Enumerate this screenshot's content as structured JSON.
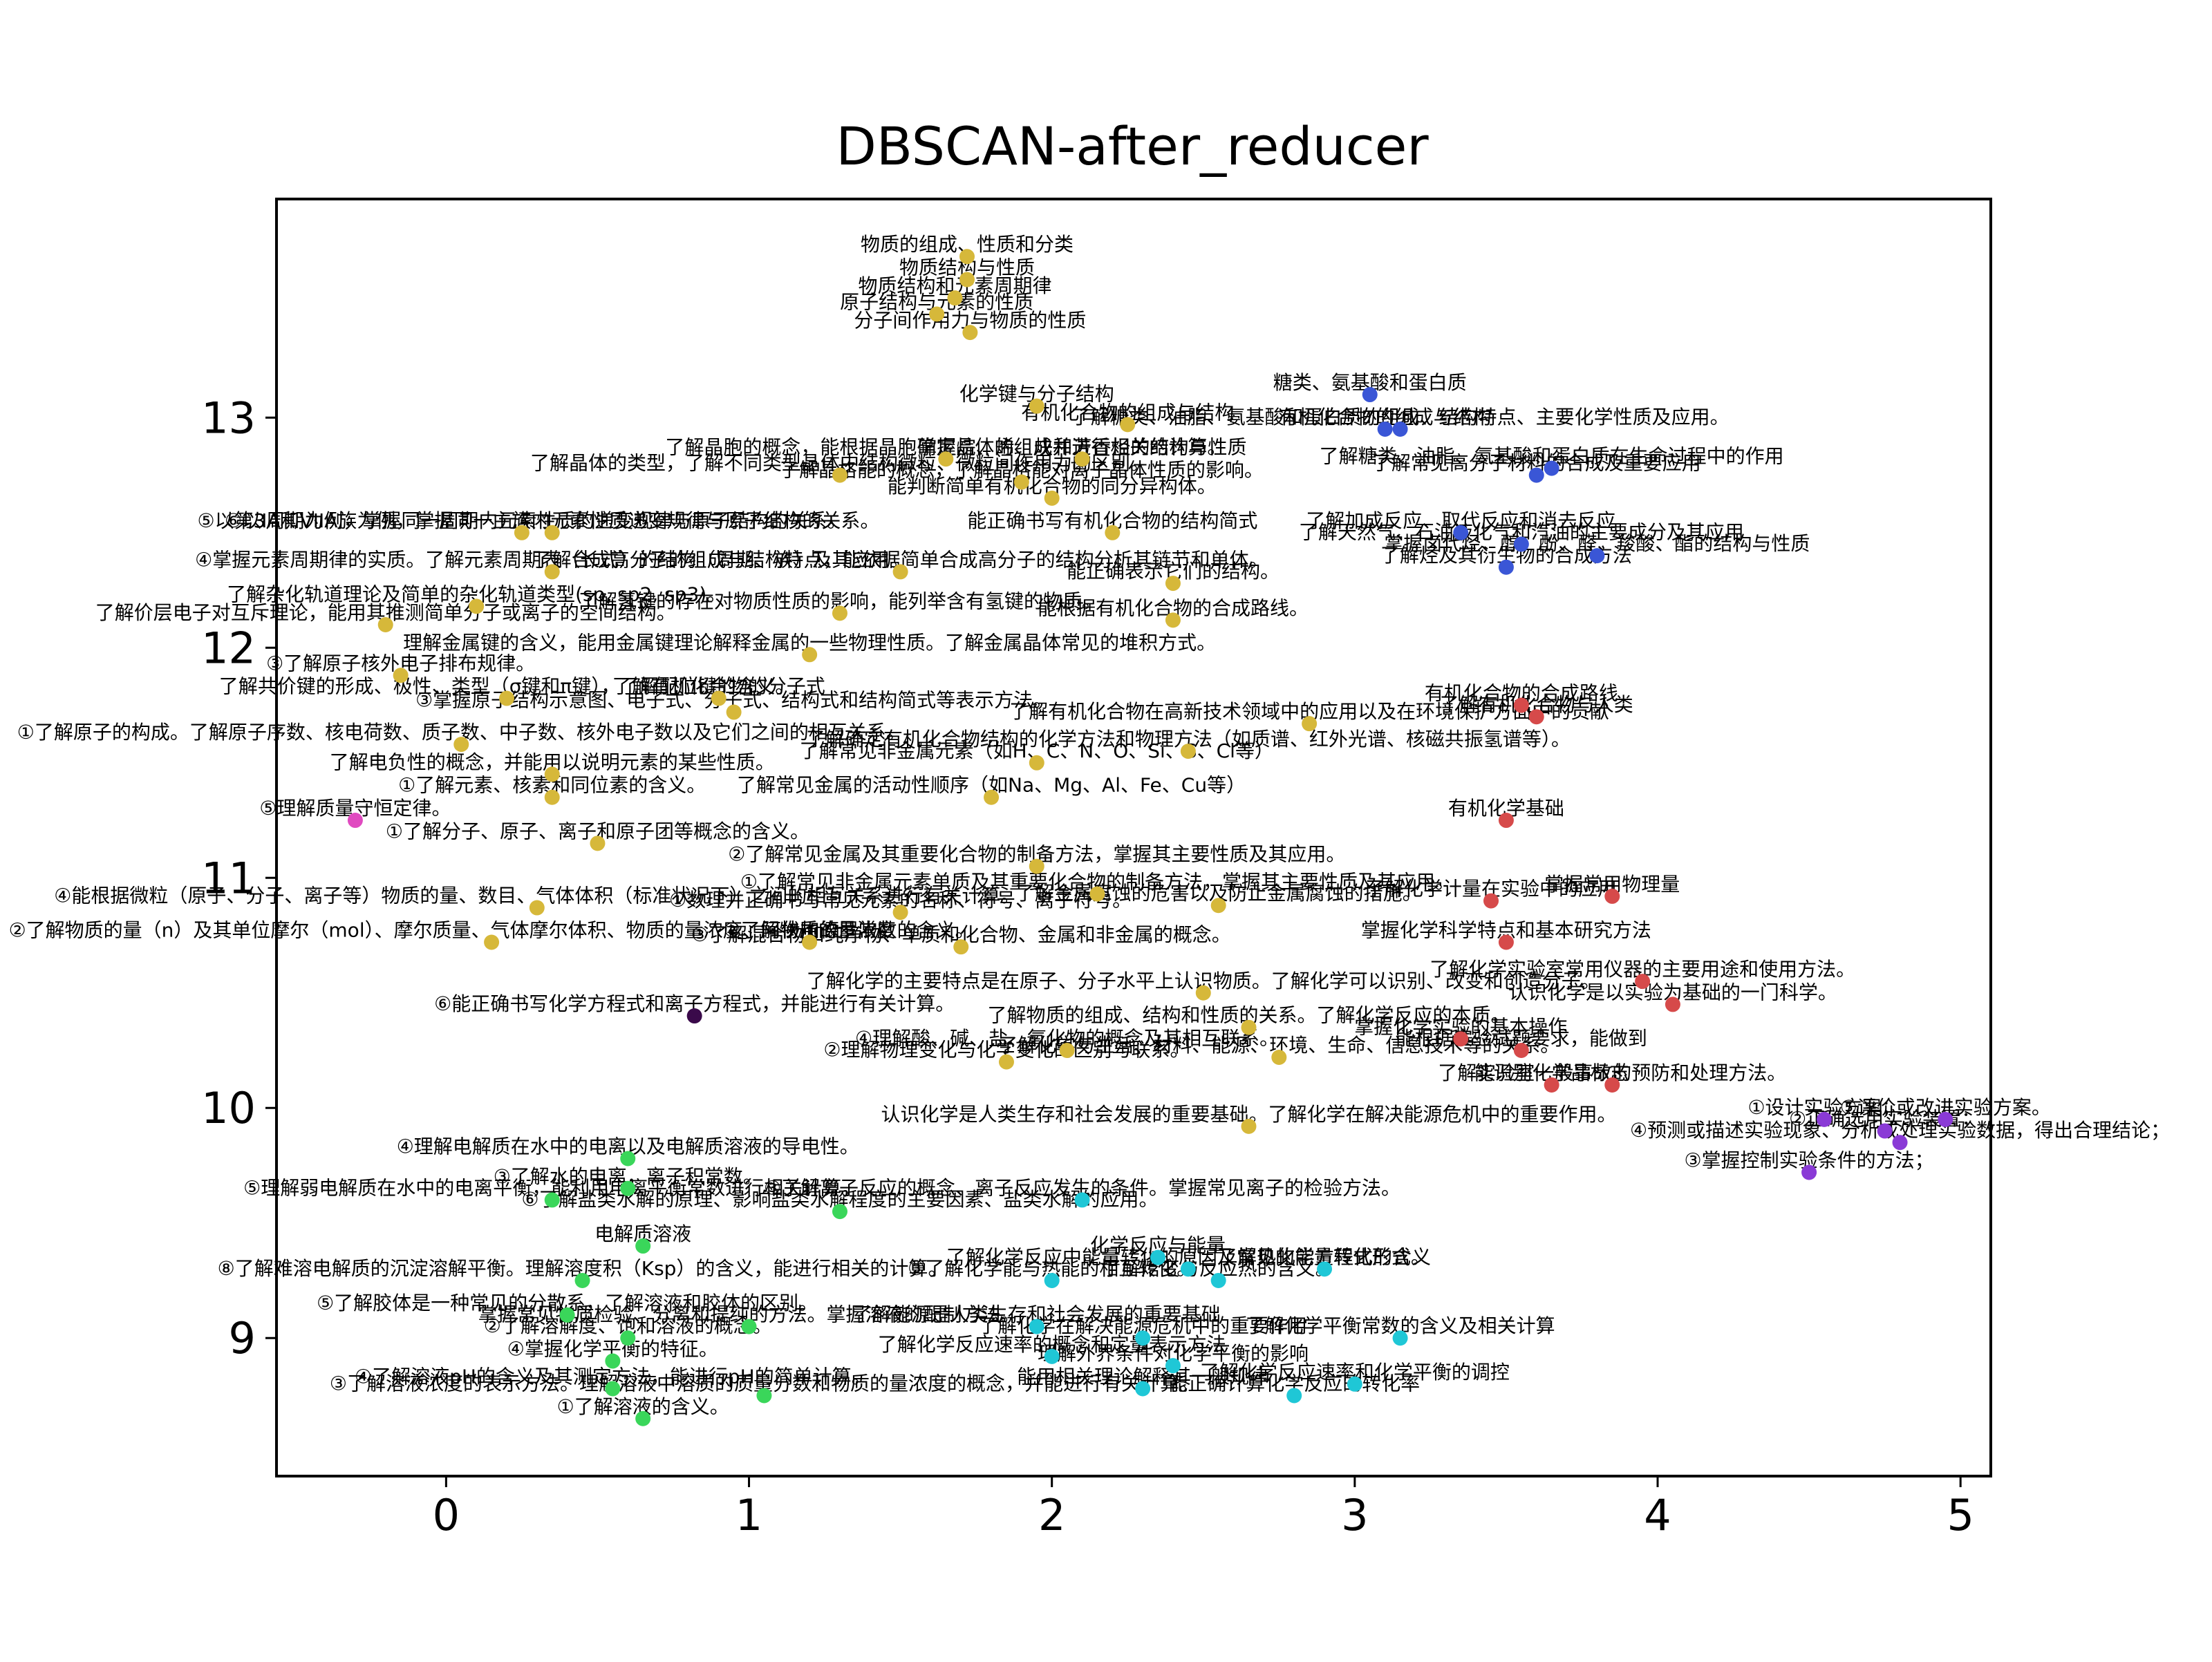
{
  "chart_data": {
    "type": "scatter",
    "title": "DBSCAN-after_reducer",
    "xlabel": "",
    "ylabel": "",
    "xlim": [
      -0.56,
      5.1
    ],
    "ylim": [
      8.4,
      13.95
    ],
    "x_ticks": [
      0,
      1,
      2,
      3,
      4,
      5
    ],
    "y_ticks": [
      9,
      10,
      11,
      12,
      13
    ],
    "grid": false,
    "legend": "none",
    "cluster_colors": {
      "c0": "#d6b83a",
      "c1": "#3a56d6",
      "c2": "#d64a4a",
      "c3": "#1fc7d6",
      "c4": "#3ad65a",
      "c5": "#8a3ad6",
      "c6": "#e04ac0",
      "c7": "#3a0a4a"
    },
    "series": [
      {
        "cluster": "c0",
        "points": [
          {
            "x": 1.72,
            "y": 13.7,
            "label": "物质的组成、性质和分类"
          },
          {
            "x": 1.72,
            "y": 13.6,
            "label": "物质结构与性质"
          },
          {
            "x": 1.68,
            "y": 13.52,
            "label": "物质结构和元素周期律"
          },
          {
            "x": 1.62,
            "y": 13.45,
            "label": "原子结构与元素的性质"
          },
          {
            "x": 1.73,
            "y": 13.37,
            "label": "分子间作用力与物质的性质"
          },
          {
            "x": 1.95,
            "y": 13.05,
            "label": "化学键与分子结构"
          },
          {
            "x": 2.25,
            "y": 12.97,
            "label": "有机化合物的组成与结构"
          },
          {
            "x": 1.65,
            "y": 12.82,
            "label": "了解晶胞的概念，能根据晶胞确定晶体的组成并进行相关的计算。"
          },
          {
            "x": 2.1,
            "y": 12.82,
            "label": "掌握烷、烯、炔和芳香烃的结构与性质"
          },
          {
            "x": 1.3,
            "y": 12.75,
            "label": "了解晶体的类型，了解不同类型晶体中结构微粒、微粒间作用力的区别。"
          },
          {
            "x": 1.9,
            "y": 12.72,
            "label": "了解晶格能的概念，了解晶格能对离子晶体性质的影响。"
          },
          {
            "x": 2.0,
            "y": 12.65,
            "label": "能判断简单有机化合物的同分异构体。"
          },
          {
            "x": 0.25,
            "y": 12.5,
            "label": "⑤以第3周期为例，掌握同一周期内元素性质的递变规律与原子结构的关系。"
          },
          {
            "x": 0.35,
            "y": 12.5,
            "label": "⑥以IA和VIIA族为例，掌握同一主族内元素性质递变规律与原子结构的关系。"
          },
          {
            "x": 2.2,
            "y": 12.5,
            "label": "能正确书写有机化合物的结构简式"
          },
          {
            "x": 0.35,
            "y": 12.33,
            "label": "④掌握元素周期律的实质。了解元素周期表（长式）的结构（周期、族）及其应用。"
          },
          {
            "x": 1.5,
            "y": 12.33,
            "label": "了解合成高分子的组成与结构特点，能依据简单合成高分子的结构分析其链节和单体。"
          },
          {
            "x": 2.4,
            "y": 12.28,
            "label": "能正确表示它们的结构。"
          },
          {
            "x": 0.1,
            "y": 12.18,
            "label": "了解杂化轨道理论及简单的杂化轨道类型(sp, sp2, sp3)。"
          },
          {
            "x": 1.3,
            "y": 12.15,
            "label": "了解氢键的存在对物质性质的影响，能列举含有氢键的物质。"
          },
          {
            "x": -0.2,
            "y": 12.1,
            "label": "了解价层电子对互斥理论，能用其推测简单分子或离子的空间结构。"
          },
          {
            "x": 2.4,
            "y": 12.12,
            "label": "能根据有机化合物的合成路线。"
          },
          {
            "x": 1.2,
            "y": 11.97,
            "label": "理解金属键的含义，能用金属键理论解释金属的一些物理性质。了解金属晶体常见的堆积方式。"
          },
          {
            "x": -0.15,
            "y": 11.88,
            "label": "③了解原子核外电子排布规律。"
          },
          {
            "x": 0.2,
            "y": 11.78,
            "label": "了解共价键的形成、极性、类型（σ键和π键），了解配位键的含义。"
          },
          {
            "x": 0.9,
            "y": 11.78,
            "label": "了解有机化合物的分子式"
          },
          {
            "x": 0.95,
            "y": 11.72,
            "label": "③掌握原子结构示意图、电子式、分子式、结构式和结构简式等表示方法。"
          },
          {
            "x": 2.85,
            "y": 11.67,
            "label": "了解有机化合物在高新技术领域中的应用以及在环境保护方面中的贡献"
          },
          {
            "x": 0.05,
            "y": 11.58,
            "label": "①了解原子的构成。了解原子序数、核电荷数、质子数、中子数、核外电子数以及它们之间的相互关系。"
          },
          {
            "x": 2.45,
            "y": 11.55,
            "label": "了解确定有机化合物结构的化学方法和物理方法（如质谱、红外光谱、核磁共振氢谱等）。"
          },
          {
            "x": 1.95,
            "y": 11.5,
            "label": "了解常见非金属元素（如H、C、N、O、Si、S、Cl等）"
          },
          {
            "x": 0.35,
            "y": 11.45,
            "label": "了解电负性的概念，并能用以说明元素的某些性质。"
          },
          {
            "x": 0.35,
            "y": 11.35,
            "label": "①了解元素、核素和同位素的含义。"
          },
          {
            "x": 1.8,
            "y": 11.35,
            "label": "了解常见金属的活动性顺序（如Na、Mg、Al、Fe、Cu等）"
          },
          {
            "x": 0.5,
            "y": 11.15,
            "label": "①了解分子、原子、离子和原子团等概念的含义。"
          },
          {
            "x": 1.95,
            "y": 11.05,
            "label": "②了解常见金属及其重要化合物的制备方法，掌握其主要性质及其应用。"
          },
          {
            "x": 0.3,
            "y": 10.87,
            "label": "④能根据微粒（原子、分子、离子等）物质的量、数目、气体体积（标准状况下）之间的相互关系进行有关计算。"
          },
          {
            "x": 2.15,
            "y": 10.93,
            "label": "①了解常见非金属元素单质及其重要化合物的制备方法，掌握其主要性质及其应用。"
          },
          {
            "x": 1.5,
            "y": 10.85,
            "label": "①数理并正确书写常见元素的名称、符号、离子符号。"
          },
          {
            "x": 2.55,
            "y": 10.88,
            "label": "了解金属腐蚀的危害以及防止金属腐蚀的措施。"
          },
          {
            "x": 0.15,
            "y": 10.72,
            "label": "②了解物质的量（n）及其单位摩尔（mol）、摩尔质量、气体摩尔体积、物质的量浓度、阿伏加德罗常数的含义。"
          },
          {
            "x": 1.2,
            "y": 10.72,
            "label": "②了解物质的量浓度"
          },
          {
            "x": 1.7,
            "y": 10.7,
            "label": "③了解混合物和纯净物、单质和化合物、金属和非金属的概念。"
          },
          {
            "x": 2.5,
            "y": 10.5,
            "label": "了解化学的主要特点是在原子、分子水平上认识物质。了解化学可以识别、改变和创造分子。"
          },
          {
            "x": 2.65,
            "y": 10.35,
            "label": "了解物质的组成、结构和性质的关系。了解化学反应的本质。"
          },
          {
            "x": 1.85,
            "y": 10.2,
            "label": "②理解物理变化与化学变化的区别与联系。"
          },
          {
            "x": 2.05,
            "y": 10.25,
            "label": "④理解酸、碱、盐、氧化物的概念及其相互联系。"
          },
          {
            "x": 2.75,
            "y": 10.22,
            "label": "了解化学与生活、材料、能源、环境、生命、信息技术等的关系。"
          },
          {
            "x": 2.65,
            "y": 9.92,
            "label": "认识化学是人类生存和社会发展的重要基础。了解化学在解决能源危机中的重要作用。"
          }
        ]
      },
      {
        "cluster": "c1",
        "points": [
          {
            "x": 3.05,
            "y": 13.1,
            "label": "糖类、氨基酸和蛋白质"
          },
          {
            "x": 3.1,
            "y": 12.95,
            "label": "有机化合物的组成与结构"
          },
          {
            "x": 3.15,
            "y": 12.95,
            "label": "了解糖类、油脂、氨基酸和蛋白质的组成、结构特点、主要化学性质及应用。"
          },
          {
            "x": 3.6,
            "y": 12.75,
            "label": "了解常见高分子材料的合成及重要应用"
          },
          {
            "x": 3.65,
            "y": 12.78,
            "label": "了解糖类、油脂、氨基酸和蛋白质在生命过程中的作用"
          },
          {
            "x": 3.35,
            "y": 12.5,
            "label": "了解加成反应、取代反应和消去反应"
          },
          {
            "x": 3.55,
            "y": 12.45,
            "label": "了解天然气、石油液化气和汽油的主要成分及其应用"
          },
          {
            "x": 3.8,
            "y": 12.4,
            "label": "掌握卤代烃、醇、酚、醛、羧酸、酯的结构与性质"
          },
          {
            "x": 3.5,
            "y": 12.35,
            "label": "了解烃及其衍生物的合成方法"
          }
        ]
      },
      {
        "cluster": "c2",
        "points": [
          {
            "x": 3.55,
            "y": 11.75,
            "label": "有机化合物的合成路线"
          },
          {
            "x": 3.6,
            "y": 11.7,
            "label": "了解有机化合物与人类"
          },
          {
            "x": 3.5,
            "y": 11.25,
            "label": "有机化学基础"
          },
          {
            "x": 3.45,
            "y": 10.9,
            "label": "了解化学计量在实验中的应用"
          },
          {
            "x": 3.85,
            "y": 10.92,
            "label": "掌握常用物理量"
          },
          {
            "x": 3.5,
            "y": 10.72,
            "label": "掌握化学科学特点和基本研究方法"
          },
          {
            "x": 3.95,
            "y": 10.55,
            "label": "了解化学实验室常用仪器的主要用途和使用方法。"
          },
          {
            "x": 4.05,
            "y": 10.45,
            "label": "认识化学是以实验为基础的一门科学。"
          },
          {
            "x": 3.35,
            "y": 10.3,
            "label": "掌握化学实验的基本操作"
          },
          {
            "x": 3.55,
            "y": 10.25,
            "label": "能根据实验试题要求，能做到"
          },
          {
            "x": 3.65,
            "y": 10.1,
            "label": "能识别化学品标志"
          },
          {
            "x": 3.85,
            "y": 10.1,
            "label": "了解实验室一般事故的预防和处理方法。"
          }
        ]
      },
      {
        "cluster": "c3",
        "points": [
          {
            "x": 2.35,
            "y": 9.35,
            "label": "化学反应与能量"
          },
          {
            "x": 2.45,
            "y": 9.3,
            "label": "了解化学反应中能量转化的原因及常见的能量转化形式。"
          },
          {
            "x": 2.55,
            "y": 9.25,
            "label": "了解焓变与反应热的含义。"
          },
          {
            "x": 2.0,
            "y": 9.25,
            "label": "③了解化学能与热能的相互转化。"
          },
          {
            "x": 2.9,
            "y": 9.3,
            "label": "了解热化学方程式的含义"
          },
          {
            "x": 2.1,
            "y": 9.6,
            "label": "③了解离子反应的概念、离子反应发生的条件。掌握常见离子的检验方法。"
          },
          {
            "x": 1.95,
            "y": 9.05,
            "label": "了解能源是人类生存和社会发展的重要基础"
          },
          {
            "x": 2.3,
            "y": 9.0,
            "label": "了解化学在解决能源危机中的重要作用"
          },
          {
            "x": 3.15,
            "y": 9.0,
            "label": "了解化学平衡常数的含义及相关计算"
          },
          {
            "x": 2.0,
            "y": 8.92,
            "label": "了解化学反应速率的概念和定量表示方法"
          },
          {
            "x": 2.4,
            "y": 8.88,
            "label": "理解外界条件对化学平衡的影响"
          },
          {
            "x": 2.3,
            "y": 8.78,
            "label": "能用相关理论解释其一般规律"
          },
          {
            "x": 2.8,
            "y": 8.75,
            "label": "能正确计算化学反应的转化率"
          },
          {
            "x": 3.0,
            "y": 8.8,
            "label": "了解化学反应速率和化学平衡的调控"
          }
        ]
      },
      {
        "cluster": "c4",
        "points": [
          {
            "x": 0.6,
            "y": 9.78,
            "label": "④理解电解质在水中的电离以及电解质溶液的导电性。"
          },
          {
            "x": 0.6,
            "y": 9.65,
            "label": "③了解水的电离，离子积常数。"
          },
          {
            "x": 0.35,
            "y": 9.6,
            "label": "⑤理解弱电解质在水中的电离平衡，能利用电离平衡常数进行相关计算。"
          },
          {
            "x": 1.3,
            "y": 9.55,
            "label": "⑥了解盐类水解的原理、影响盐类水解程度的主要因素、盐类水解的应用。"
          },
          {
            "x": 0.65,
            "y": 9.4,
            "label": "电解质溶液"
          },
          {
            "x": 0.45,
            "y": 9.25,
            "label": "⑧了解难溶电解质的沉淀溶解平衡。理解溶度积（Ksp）的含义，能进行相关的计算。"
          },
          {
            "x": 0.4,
            "y": 9.1,
            "label": "⑤了解胶体是一种常见的分散系，了解溶液和胶体的区别。"
          },
          {
            "x": 0.6,
            "y": 9.0,
            "label": "②了解溶解度、饱和溶液的概念。"
          },
          {
            "x": 1.0,
            "y": 9.05,
            "label": "掌握常见物质检验、分离和提纯的方法。掌握溶液的配制方法。"
          },
          {
            "x": 0.55,
            "y": 8.9,
            "label": "④掌握化学平衡的特征。"
          },
          {
            "x": 0.55,
            "y": 8.78,
            "label": "④了解溶液pH的含义及其测定方法，能进行pH的简单计算。"
          },
          {
            "x": 1.05,
            "y": 8.75,
            "label": "③了解溶液浓度的表示方法。理解溶液中溶质的质量分数和物质的量浓度的概念，并能进行有关计算。"
          },
          {
            "x": 0.65,
            "y": 8.65,
            "label": "①了解溶液的含义。"
          }
        ]
      },
      {
        "cluster": "c5",
        "points": [
          {
            "x": 4.55,
            "y": 9.95,
            "label": "①设计实验方案；"
          },
          {
            "x": 4.75,
            "y": 9.9,
            "label": "②正确选用实验装置；"
          },
          {
            "x": 4.8,
            "y": 9.85,
            "label": "④预测或描述实验现象、分析或处理实验数据，得出合理结论；"
          },
          {
            "x": 4.5,
            "y": 9.72,
            "label": "③掌握控制实验条件的方法；"
          },
          {
            "x": 4.95,
            "y": 9.95,
            "label": "⑤评价或改进实验方案。"
          }
        ]
      },
      {
        "cluster": "c6",
        "points": [
          {
            "x": -0.3,
            "y": 11.25,
            "label": "⑤理解质量守恒定律。"
          }
        ]
      },
      {
        "cluster": "c7",
        "points": [
          {
            "x": 0.82,
            "y": 10.4,
            "label": "⑥能正确书写化学方程式和离子方程式，并能进行有关计算。"
          }
        ]
      }
    ]
  }
}
